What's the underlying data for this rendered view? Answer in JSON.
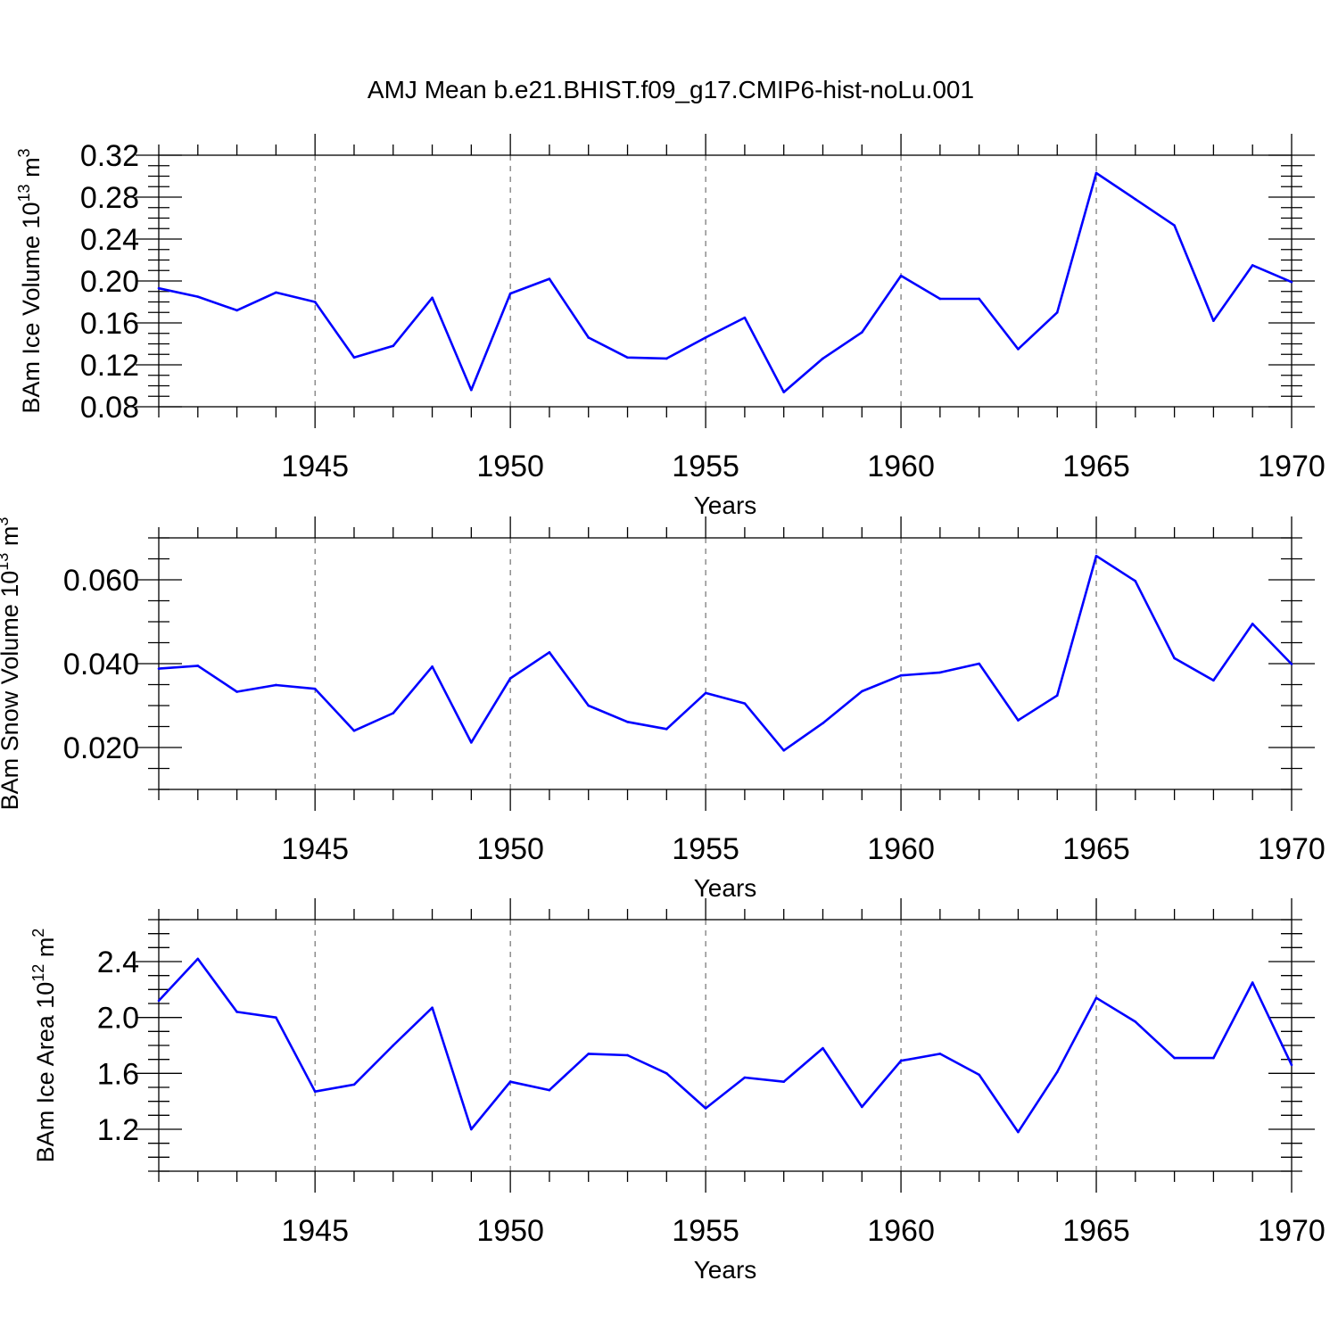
{
  "title": "AMJ Mean b.e21.BHIST.f09_g17.CMIP6-hist-noLu.001",
  "colors": {
    "line": "#0000ff",
    "axis": "#000000",
    "grid": "#555555",
    "background": "#ffffff"
  },
  "chart_data": [
    {
      "type": "line",
      "id": "ice-volume",
      "ylabel": {
        "main": "BAm Ice Volume 10",
        "exp1": "13",
        "unit": " m",
        "exp2": "3"
      },
      "xlabel": "Years",
      "xlim": [
        1941,
        1970
      ],
      "ylim": [
        0.08,
        0.32
      ],
      "xticks": [
        1945,
        1950,
        1955,
        1960,
        1965,
        1970
      ],
      "yticks": [
        0.08,
        0.12,
        0.16,
        0.2,
        0.24,
        0.28,
        0.32
      ],
      "ytick_labels": [
        "0.08",
        "0.12",
        "0.16",
        "0.20",
        "0.24",
        "0.28",
        "0.32"
      ],
      "y_minor_step": 0.01,
      "grid": "dashed vertical at major x ticks",
      "x": [
        1941,
        1942,
        1943,
        1944,
        1945,
        1946,
        1947,
        1948,
        1949,
        1950,
        1951,
        1952,
        1953,
        1954,
        1955,
        1956,
        1957,
        1958,
        1959,
        1960,
        1961,
        1962,
        1963,
        1964,
        1965,
        1966,
        1967,
        1968,
        1969,
        1970
      ],
      "values": [
        0.193,
        0.185,
        0.172,
        0.189,
        0.18,
        0.127,
        0.138,
        0.184,
        0.096,
        0.188,
        0.202,
        0.146,
        0.127,
        0.126,
        0.146,
        0.165,
        0.094,
        0.126,
        0.151,
        0.205,
        0.183,
        0.183,
        0.135,
        0.17,
        0.303,
        0.278,
        0.253,
        0.162,
        0.215,
        0.199
      ]
    },
    {
      "type": "line",
      "id": "snow-volume",
      "ylabel": {
        "main": "BAm Snow Volume 10",
        "exp1": "13",
        "unit": " m",
        "exp2": "3"
      },
      "xlabel": "Years",
      "xlim": [
        1941,
        1970
      ],
      "ylim": [
        0.01,
        0.07
      ],
      "xticks": [
        1945,
        1950,
        1955,
        1960,
        1965,
        1970
      ],
      "yticks": [
        0.02,
        0.04,
        0.06
      ],
      "ytick_labels": [
        "0.020",
        "0.040",
        "0.060"
      ],
      "y_minor_step": 0.005,
      "grid": "dashed vertical at major x ticks",
      "x": [
        1941,
        1942,
        1943,
        1944,
        1945,
        1946,
        1947,
        1948,
        1949,
        1950,
        1951,
        1952,
        1953,
        1954,
        1955,
        1956,
        1957,
        1958,
        1959,
        1960,
        1961,
        1962,
        1963,
        1964,
        1965,
        1966,
        1967,
        1968,
        1969,
        1970
      ],
      "values": [
        0.0388,
        0.0395,
        0.0333,
        0.0349,
        0.034,
        0.024,
        0.0282,
        0.0393,
        0.0212,
        0.0365,
        0.0427,
        0.03,
        0.0261,
        0.0244,
        0.033,
        0.0305,
        0.0193,
        0.0258,
        0.0334,
        0.0372,
        0.0379,
        0.04,
        0.0265,
        0.0324,
        0.0657,
        0.0597,
        0.0413,
        0.036,
        0.0495,
        0.0399
      ]
    },
    {
      "type": "line",
      "id": "ice-area",
      "ylabel": {
        "main": "BAm Ice Area 10",
        "exp1": "12",
        "unit": " m",
        "exp2": "2"
      },
      "xlabel": "Years",
      "xlim": [
        1941,
        1970
      ],
      "ylim": [
        0.9,
        2.7
      ],
      "xticks": [
        1945,
        1950,
        1955,
        1960,
        1965,
        1970
      ],
      "yticks": [
        1.2,
        1.6,
        2.0,
        2.4
      ],
      "ytick_labels": [
        "1.2",
        "1.6",
        "2.0",
        "2.4"
      ],
      "y_minor_step": 0.1,
      "grid": "dashed vertical at major x ticks",
      "x": [
        1941,
        1942,
        1943,
        1944,
        1945,
        1946,
        1947,
        1948,
        1949,
        1950,
        1951,
        1952,
        1953,
        1954,
        1955,
        1956,
        1957,
        1958,
        1959,
        1960,
        1961,
        1962,
        1963,
        1964,
        1965,
        1966,
        1967,
        1968,
        1969,
        1970
      ],
      "values": [
        2.12,
        2.42,
        2.04,
        2.0,
        1.47,
        1.52,
        1.8,
        2.07,
        1.2,
        1.54,
        1.48,
        1.74,
        1.73,
        1.6,
        1.35,
        1.57,
        1.54,
        1.78,
        1.36,
        1.69,
        1.74,
        1.59,
        1.18,
        1.61,
        2.14,
        1.97,
        1.71,
        1.71,
        2.25,
        1.66
      ]
    }
  ]
}
